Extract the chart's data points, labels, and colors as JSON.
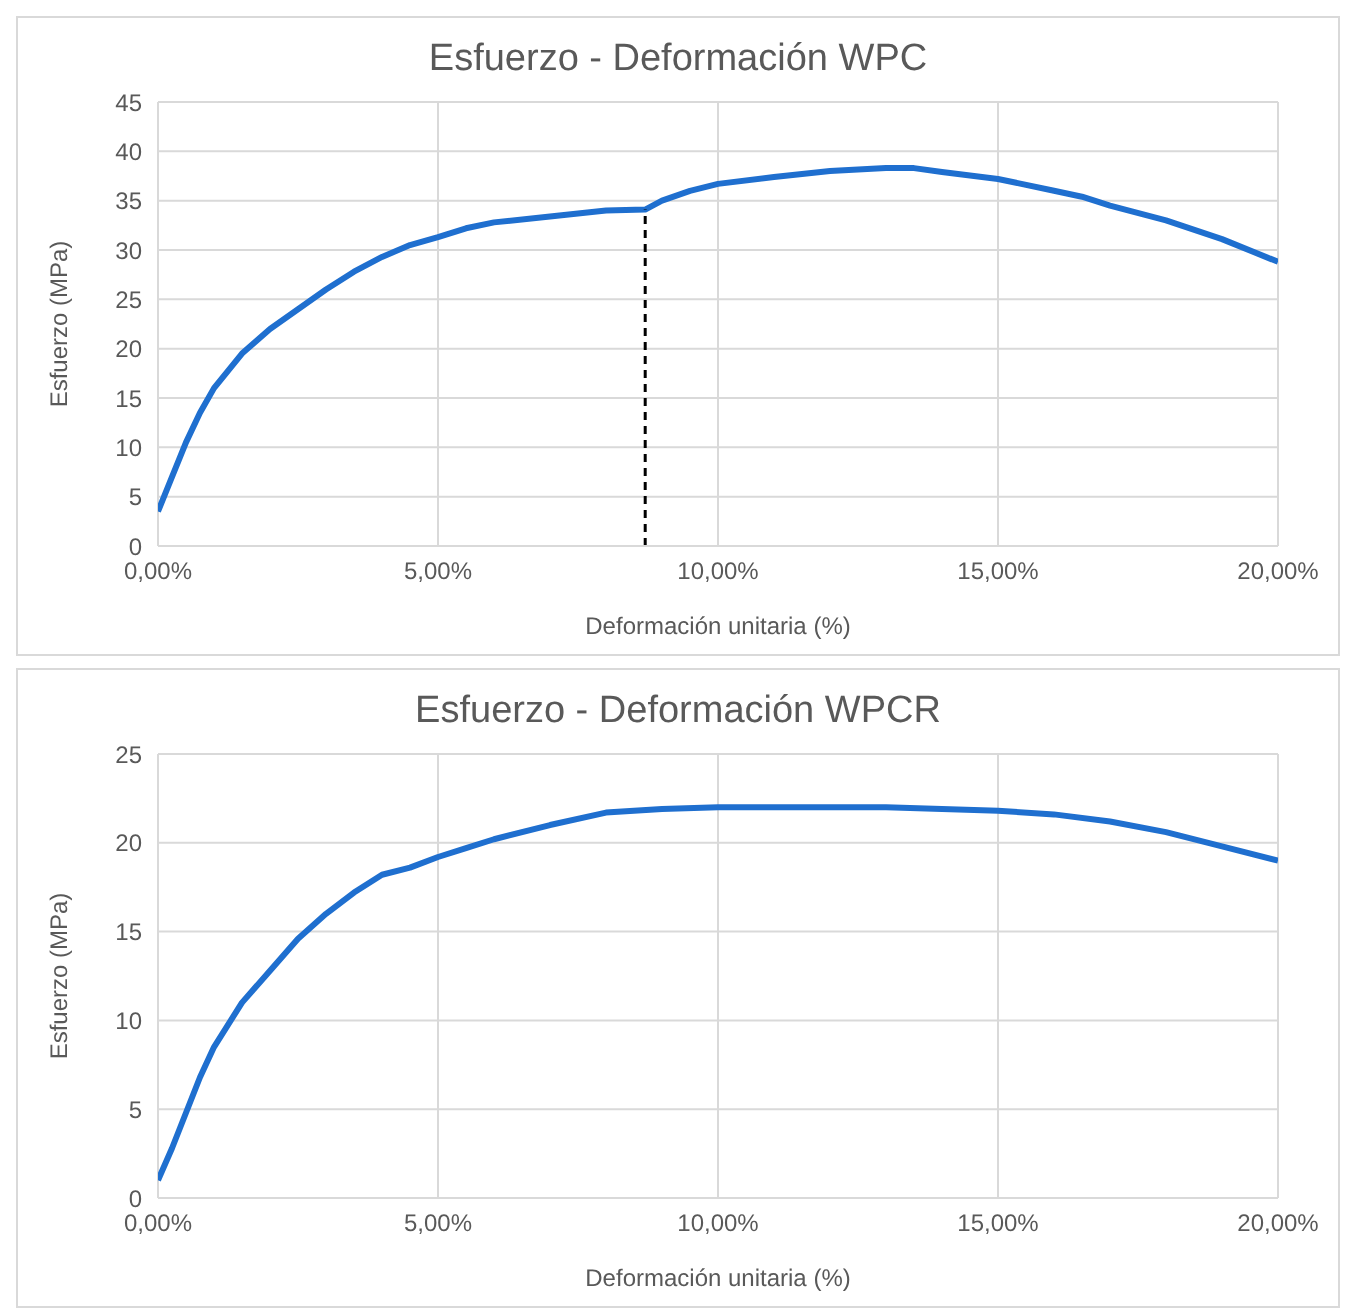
{
  "chart_data": [
    {
      "type": "line",
      "title": "Esfuerzo - Deformación WPC",
      "xlabel": "Deformación unitaria (%)",
      "ylabel": "Esfuerzo (MPa)",
      "grid": true,
      "legend": false,
      "marker": "none",
      "line_style": "solid",
      "x": [
        0,
        0.25,
        0.5,
        0.75,
        1,
        1.5,
        2,
        2.5,
        3,
        3.5,
        4,
        4.5,
        5,
        5.5,
        6,
        7,
        8,
        8.7,
        9,
        9.5,
        10,
        11,
        12,
        13,
        13.5,
        14,
        15,
        16,
        16.5,
        17,
        18,
        19,
        20
      ],
      "series": [
        {
          "color": "#1f6fcf",
          "values": [
            3.5,
            7,
            10.5,
            13.5,
            16,
            19.5,
            22,
            24,
            26,
            27.8,
            29.3,
            30.5,
            31.3,
            32.2,
            32.8,
            33.4,
            34.0,
            34.1,
            35,
            36,
            36.7,
            37.4,
            38,
            38.3,
            38.3,
            37.9,
            37.2,
            36,
            35.4,
            34.5,
            33,
            31.1,
            28.8
          ]
        }
      ],
      "xlim": [
        0,
        20
      ],
      "xticks": [
        {
          "value": 0,
          "label": "0,00%"
        },
        {
          "value": 5,
          "label": "5,00%"
        },
        {
          "value": 10,
          "label": "10,00%"
        },
        {
          "value": 15,
          "label": "15,00%"
        },
        {
          "value": 20,
          "label": "20,00%"
        }
      ],
      "ylim": [
        0,
        45
      ],
      "yticks": [
        0,
        5,
        10,
        15,
        20,
        25,
        30,
        35,
        40,
        45
      ],
      "ref_lines": [
        {
          "axis": "x",
          "value": 8.7,
          "color": "#000000",
          "line_style": "dashed"
        }
      ]
    },
    {
      "type": "line",
      "title": "Esfuerzo - Deformación WPCR",
      "xlabel": "Deformación unitaria (%)",
      "ylabel": "Esfuerzo (MPa)",
      "grid": true,
      "legend": false,
      "marker": "none",
      "line_style": "solid",
      "x": [
        0,
        0.25,
        0.5,
        0.75,
        1,
        1.5,
        2,
        2.5,
        3,
        3.5,
        4,
        4.5,
        5,
        5.5,
        6,
        7,
        8,
        9,
        10,
        12,
        13,
        14,
        15,
        16,
        17,
        18,
        19,
        20
      ],
      "series": [
        {
          "color": "#1f6fcf",
          "values": [
            1,
            2.8,
            4.8,
            6.8,
            8.5,
            11,
            12.8,
            14.6,
            16,
            17.2,
            18.2,
            18.6,
            19.2,
            19.7,
            20.2,
            21,
            21.7,
            21.9,
            22,
            22,
            22,
            21.9,
            21.8,
            21.6,
            21.2,
            20.6,
            19.8,
            19
          ]
        }
      ],
      "xlim": [
        0,
        20
      ],
      "xticks": [
        {
          "value": 0,
          "label": "0,00%"
        },
        {
          "value": 5,
          "label": "5,00%"
        },
        {
          "value": 10,
          "label": "10,00%"
        },
        {
          "value": 15,
          "label": "15,00%"
        },
        {
          "value": 20,
          "label": "20,00%"
        }
      ],
      "ylim": [
        0,
        25
      ],
      "yticks": [
        0,
        5,
        10,
        15,
        20,
        25
      ]
    }
  ]
}
